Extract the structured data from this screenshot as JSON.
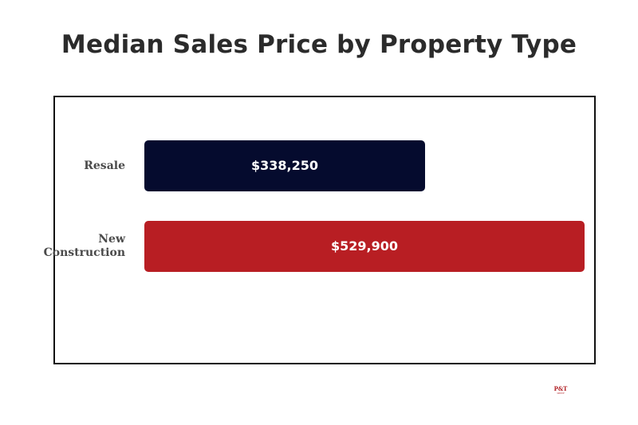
{
  "chart_data": {
    "type": "bar",
    "orientation": "horizontal",
    "title": "Median Sales Price by Property Type",
    "categories": [
      "Resale",
      "New\nConstruction"
    ],
    "values": [
      338250,
      529900
    ],
    "value_labels": [
      "$338,250",
      "$529,900"
    ],
    "colors": [
      "#050b2e",
      "#b81e23"
    ],
    "xlim": [
      0,
      529900
    ],
    "grid": false,
    "legend": "none",
    "xlabel": "",
    "ylabel": ""
  },
  "logo": {
    "mark": "P&T",
    "sub": "GROUP"
  }
}
